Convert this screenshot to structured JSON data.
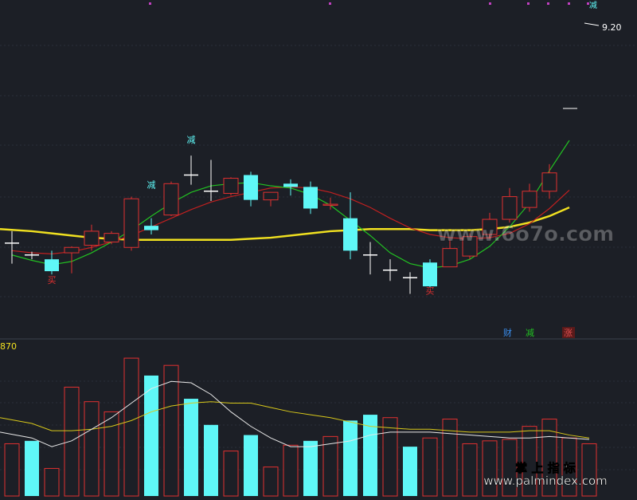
{
  "colors": {
    "background": "#1c1f26",
    "grid": "#2a2f3a",
    "up": "#e03030",
    "down": "#5ff7f7",
    "ma_short": "#22c222",
    "ma_mid": "#c02020",
    "ma_long": "#f0e020",
    "vol_ma_white": "#e8e8e8",
    "vol_ma_yellow": "#d8c81a",
    "top_markers": "#c040c0"
  },
  "chart_data": [
    {
      "type": "candlestick",
      "panel": "price",
      "x": [
        1,
        2,
        3,
        4,
        5,
        6,
        7,
        8,
        9,
        10,
        11,
        12,
        13,
        14,
        15,
        16,
        17,
        18,
        19,
        20,
        21,
        22,
        23,
        24,
        25,
        26,
        27,
        28,
        29
      ],
      "candles": [
        {
          "o": 0.5,
          "h": 1.6,
          "l": -1.4,
          "c": 0.5
        },
        {
          "o": -0.6,
          "h": -0.3,
          "l": -1.0,
          "c": -0.6
        },
        {
          "o": -1.0,
          "h": -0.2,
          "l": -2.4,
          "c": -2.1
        },
        {
          "o": -0.4,
          "h": 0.2,
          "l": -2.3,
          "c": 0.1
        },
        {
          "o": 0.3,
          "h": 2.2,
          "l": -0.2,
          "c": 1.6
        },
        {
          "o": 0.6,
          "h": 1.6,
          "l": 0.4,
          "c": 1.4
        },
        {
          "o": 0.1,
          "h": 4.8,
          "l": -0.2,
          "c": 4.6
        },
        {
          "o": 2.1,
          "h": 2.8,
          "l": 1.3,
          "c": 1.7
        },
        {
          "o": 3.1,
          "h": 6.2,
          "l": 3.0,
          "c": 6.0
        },
        {
          "o": 6.8,
          "h": 8.6,
          "l": 5.9,
          "c": 6.8
        },
        {
          "o": 5.3,
          "h": 8.2,
          "l": 4.4,
          "c": 5.3
        },
        {
          "o": 5.1,
          "h": 6.6,
          "l": 4.9,
          "c": 6.5
        },
        {
          "o": 6.8,
          "h": 7.1,
          "l": 3.9,
          "c": 4.5
        },
        {
          "o": 4.5,
          "h": 5.2,
          "l": 3.9,
          "c": 5.2
        },
        {
          "o": 6.0,
          "h": 6.4,
          "l": 4.9,
          "c": 5.7
        },
        {
          "o": 5.7,
          "h": 6.2,
          "l": 3.2,
          "c": 3.7
        },
        {
          "o": 4.0,
          "h": 4.7,
          "l": 3.6,
          "c": 4.1
        },
        {
          "o": 2.8,
          "h": 5.2,
          "l": -1.0,
          "c": -0.2
        },
        {
          "o": -0.6,
          "h": 0.6,
          "l": -2.4,
          "c": -0.6
        },
        {
          "o": -2.0,
          "h": -1.0,
          "l": -3.0,
          "c": -2.0
        },
        {
          "o": -2.7,
          "h": -2.2,
          "l": -4.2,
          "c": -2.7
        },
        {
          "o": -1.3,
          "h": -1.0,
          "l": -3.6,
          "c": -3.5
        },
        {
          "o": -1.7,
          "h": 0.8,
          "l": -1.7,
          "c": 0.0
        },
        {
          "o": -0.7,
          "h": 1.4,
          "l": -1.0,
          "c": 1.1
        },
        {
          "o": 1.3,
          "h": 3.3,
          "l": 0.9,
          "c": 2.7
        },
        {
          "o": 2.7,
          "h": 5.6,
          "l": 2.4,
          "c": 4.8
        },
        {
          "o": 3.8,
          "h": 6.0,
          "l": 3.4,
          "c": 5.3
        },
        {
          "o": 5.3,
          "h": 7.8,
          "l": 4.6,
          "c": 7.0
        },
        {
          "o": 3.1,
          "h": 3.2,
          "l": 2.9,
          "c": 2.9
        }
      ],
      "ma_short": [
        -0.6,
        -1.1,
        -1.5,
        -1.2,
        -0.4,
        0.6,
        1.7,
        3.0,
        4.2,
        5.2,
        5.8,
        6.0,
        6.1,
        5.8,
        5.6,
        5.0,
        4.0,
        2.6,
        1.2,
        -0.4,
        -1.4,
        -1.8,
        -1.6,
        -1.0,
        0.2,
        2.0,
        4.2,
        7.2,
        10.0
      ],
      "ma_mid": [
        -0.2,
        -0.4,
        -0.5,
        -0.3,
        0.1,
        0.6,
        1.2,
        2.0,
        2.8,
        3.6,
        4.3,
        4.8,
        5.2,
        5.6,
        5.7,
        5.6,
        5.2,
        4.6,
        3.8,
        2.8,
        1.9,
        1.3,
        1.0,
        0.9,
        1.0,
        1.4,
        2.3,
        3.7,
        5.4
      ],
      "ma_long": [
        1.8,
        1.6,
        1.4,
        1.2,
        1.0,
        0.9,
        0.8,
        0.8,
        0.8,
        0.8,
        0.8,
        0.8,
        0.9,
        1.0,
        1.2,
        1.4,
        1.6,
        1.7,
        1.8,
        1.8,
        1.8,
        1.7,
        1.7,
        1.7,
        1.8,
        2.0,
        2.4,
        3.0,
        3.8
      ],
      "ylim": [
        -8,
        23
      ],
      "annotations": [
        {
          "x": 10,
          "y": 9.8,
          "text": "减",
          "color": "#5ff7f7"
        },
        {
          "x": 8,
          "y": 5.6,
          "text": "减",
          "color": "#5ff7f7"
        },
        {
          "x": 3,
          "y": -3.2,
          "text": "买",
          "color": "#e03030"
        },
        {
          "x": 22,
          "y": -4.2,
          "text": "买",
          "color": "#e03030"
        }
      ],
      "price_label": {
        "text": "9.20",
        "color": "#ffffff"
      },
      "top_right_mark": {
        "text": "减",
        "color": "#5ff7f7"
      },
      "legend": [
        {
          "text": "财",
          "color": "#3a8ff0"
        },
        {
          "text": "减",
          "color": "#22c222"
        },
        {
          "text": "涨",
          "color": "#e05050",
          "bg": "#5a1a1a"
        }
      ]
    },
    {
      "type": "bar",
      "panel": "volume",
      "x": [
        1,
        2,
        3,
        4,
        5,
        6,
        7,
        8,
        9,
        10,
        11,
        12,
        13,
        14,
        15,
        16,
        17,
        18,
        19,
        20,
        21,
        22,
        23,
        24,
        25,
        26,
        27,
        28,
        29,
        30
      ],
      "values": [
        1.8,
        1.9,
        0.95,
        3.75,
        3.25,
        2.9,
        4.75,
        4.15,
        4.5,
        3.35,
        2.45,
        1.55,
        2.1,
        1.0,
        1.75,
        1.9,
        2.05,
        2.6,
        2.8,
        2.7,
        1.7,
        2.0,
        2.65,
        1.8,
        1.9,
        1.95,
        2.4,
        2.65,
        2.0,
        1.8
      ],
      "direction": [
        "up",
        "down",
        "up",
        "up",
        "up",
        "up",
        "up",
        "down",
        "up",
        "down",
        "down",
        "up",
        "down",
        "up",
        "up",
        "down",
        "up",
        "down",
        "down",
        "up",
        "down",
        "up",
        "up",
        "up",
        "up",
        "up",
        "up",
        "up",
        "up",
        "up"
      ],
      "ma_white": [
        2.2,
        2.0,
        1.7,
        1.9,
        2.3,
        2.7,
        3.2,
        3.7,
        3.95,
        3.9,
        3.5,
        2.9,
        2.4,
        2.0,
        1.7,
        1.7,
        1.8,
        1.9,
        2.1,
        2.2,
        2.2,
        2.2,
        2.15,
        2.1,
        2.05,
        2.0,
        2.0,
        2.05,
        2.0,
        1.95
      ],
      "ma_yellow": [
        2.7,
        2.5,
        2.25,
        2.25,
        2.3,
        2.4,
        2.6,
        2.9,
        3.1,
        3.2,
        3.25,
        3.2,
        3.2,
        3.05,
        2.9,
        2.8,
        2.7,
        2.55,
        2.4,
        2.35,
        2.3,
        2.3,
        2.25,
        2.2,
        2.2,
        2.2,
        2.25,
        2.25,
        2.1,
        2.0
      ],
      "ylim": [
        0,
        5
      ],
      "label": "870",
      "label_color": "#f0e020"
    }
  ],
  "watermarks": {
    "center": "www.6o7o.com",
    "bottom_cn": "掌 上 指 标",
    "bottom_url": "www.palmindex.com"
  }
}
